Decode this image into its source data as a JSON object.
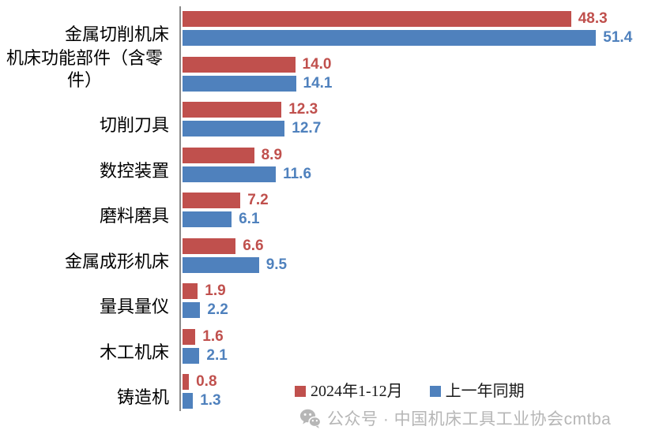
{
  "chart_data": {
    "type": "bar",
    "orientation": "horizontal",
    "title": "",
    "categories": [
      "金属切削机床",
      "机床功能部件（含零件）",
      "切削刀具",
      "数控装置",
      "磨料磨具",
      "金属成形机床",
      "量具量仪",
      "木工机床",
      "铸造机"
    ],
    "series": [
      {
        "name": "2024年1-12月",
        "color": "#c0504d",
        "values": [
          48.3,
          14.0,
          12.3,
          8.9,
          7.2,
          6.6,
          1.9,
          1.6,
          0.8
        ]
      },
      {
        "name": "上一年同期",
        "color": "#4f81bd",
        "values": [
          51.4,
          14.1,
          12.7,
          11.6,
          6.1,
          9.5,
          2.2,
          2.1,
          1.3
        ]
      }
    ],
    "value_labels": true,
    "xlim": [
      0,
      59
    ],
    "grid": false,
    "legend_position": "bottom",
    "axis_color": "#8a8a8a"
  },
  "watermark": {
    "icon": "wechat-icon",
    "text": "公众号 · 中国机床工具工业协会cmtba",
    "color": "#b6b6b6"
  }
}
